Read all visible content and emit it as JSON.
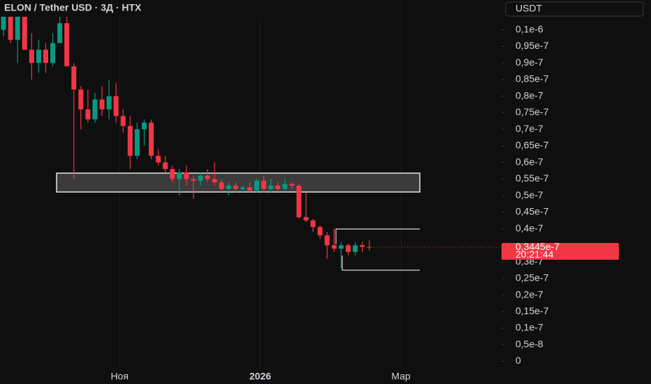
{
  "chart_data": {
    "type": "candlestick",
    "title": "ELON / Tether USD · 3Д · HTX",
    "currency_button": "USDT",
    "up_color": "#089981",
    "down_color": "#f23645",
    "open": [
      1e-07,
      1.04e-07,
      9.7e-08,
      1.05e-07,
      9.4e-08,
      9e-08,
      9.4e-08,
      9e-08,
      9.6e-08,
      1.02e-07,
      8.9e-08,
      8.2e-08,
      7.6e-08,
      7.3e-08,
      7.9e-08,
      7.6e-08,
      8e-08,
      7.4e-08,
      7.1e-08,
      6.2e-08,
      7e-08,
      7.2e-08,
      6.2e-08,
      6e-08,
      5.8e-08,
      5.5e-08,
      5.7e-08,
      5.5e-08,
      5.45e-08,
      5.6e-08,
      5.5e-08,
      5.4e-08,
      5.2e-08,
      5.3e-08,
      5.2e-08,
      5.25e-08,
      5.15e-08,
      5.45e-08,
      5.2e-08,
      5.3e-08,
      5.2e-08,
      5.35e-08,
      5.3e-08,
      4.35e-08,
      4.25e-08,
      4.05e-08,
      3.8e-08,
      3.5e-08,
      3.4e-08,
      3.5e-08,
      3.3e-08,
      3.5e-08,
      3.45e-08
    ],
    "high": [
      1.08e-07,
      1.06e-07,
      1.06e-07,
      1.08e-07,
      9.9e-08,
      9.7e-08,
      9.6e-08,
      9.9e-08,
      1.08e-07,
      1.08e-07,
      9e-08,
      8.3e-08,
      8.2e-08,
      8.1e-08,
      8.3e-08,
      8.5e-08,
      8.4e-08,
      7.6e-08,
      7.4e-08,
      7.2e-08,
      7.3e-08,
      7.3e-08,
      6.4e-08,
      6.2e-08,
      5.9e-08,
      5.8e-08,
      5.9e-08,
      5.6e-08,
      5.7e-08,
      5.8e-08,
      6e-08,
      5.5e-08,
      5.4e-08,
      5.4e-08,
      5.3e-08,
      5.4e-08,
      5.5e-08,
      5.6e-08,
      5.5e-08,
      5.4e-08,
      5.5e-08,
      5.4e-08,
      5.35e-08,
      5.1e-08,
      4.3e-08,
      4.1e-08,
      3.9e-08,
      4e-08,
      3.6e-08,
      3.55e-08,
      3.6e-08,
      3.6e-08,
      3.65e-08
    ],
    "low": [
      9.8e-08,
      9.6e-08,
      9e-08,
      9.4e-08,
      8.5e-08,
      8.7e-08,
      8.7e-08,
      8.9e-08,
      9.6e-08,
      8.9e-08,
      5.5e-08,
      7e-08,
      7.2e-08,
      7.2e-08,
      7.4e-08,
      7.3e-08,
      7.2e-08,
      6.9e-08,
      5.8e-08,
      6.1e-08,
      6.5e-08,
      6.1e-08,
      5.9e-08,
      5.7e-08,
      5.4e-08,
      5e-08,
      5.3e-08,
      4.9e-08,
      5.3e-08,
      5.4e-08,
      5.3e-08,
      5.1e-08,
      5e-08,
      5.1e-08,
      5.1e-08,
      5.1e-08,
      5.1e-08,
      5.1e-08,
      5.1e-08,
      5.15e-08,
      5.1e-08,
      5.2e-08,
      4.3e-08,
      4.2e-08,
      3.9e-08,
      3.7e-08,
      3.1e-08,
      3.3e-08,
      2.8e-08,
      3.2e-08,
      3.2e-08,
      3.3e-08,
      3.35e-08
    ],
    "close": [
      1.04e-07,
      9.7e-08,
      1.05e-07,
      9.4e-08,
      9e-08,
      9.4e-08,
      9e-08,
      9.6e-08,
      1.02e-07,
      8.9e-08,
      8.2e-08,
      7.6e-08,
      7.3e-08,
      7.9e-08,
      7.6e-08,
      8e-08,
      7.4e-08,
      7.1e-08,
      6.2e-08,
      7e-08,
      7.2e-08,
      6.2e-08,
      6e-08,
      5.8e-08,
      5.5e-08,
      5.7e-08,
      5.5e-08,
      5.45e-08,
      5.6e-08,
      5.5e-08,
      5.4e-08,
      5.2e-08,
      5.3e-08,
      5.2e-08,
      5.25e-08,
      5.15e-08,
      5.45e-08,
      5.2e-08,
      5.3e-08,
      5.2e-08,
      5.35e-08,
      5.3e-08,
      4.35e-08,
      4.25e-08,
      4.05e-08,
      3.8e-08,
      3.5e-08,
      3.4e-08,
      3.5e-08,
      3.3e-08,
      3.5e-08,
      3.45e-08,
      3.445e-08
    ],
    "xlim": [
      -0.5,
      70.8
    ],
    "xticks": [
      {
        "value": 16.5,
        "label": "Ноя"
      },
      {
        "value": 36.5,
        "label": "2026"
      },
      {
        "value": 56.5,
        "label": "Мар"
      }
    ],
    "ylim": [
      -2e-09,
      1.09e-07
    ],
    "yticks": [
      {
        "value": 1e-07,
        "label": "0,1e-6"
      },
      {
        "value": 9.5e-08,
        "label": "0,95e-7"
      },
      {
        "value": 9e-08,
        "label": "0,9e-7"
      },
      {
        "value": 8.5e-08,
        "label": "0,85e-7"
      },
      {
        "value": 8e-08,
        "label": "0,8e-7"
      },
      {
        "value": 7.5e-08,
        "label": "0,75e-7"
      },
      {
        "value": 7e-08,
        "label": "0,7e-7"
      },
      {
        "value": 6.5e-08,
        "label": "0,65e-7"
      },
      {
        "value": 6e-08,
        "label": "0,6e-7"
      },
      {
        "value": 5.5e-08,
        "label": "0,55e-7"
      },
      {
        "value": 5e-08,
        "label": "0,5e-7"
      },
      {
        "value": 4.5e-08,
        "label": "0,45e-7"
      },
      {
        "value": 4e-08,
        "label": "0,4e-7"
      },
      {
        "value": 3e-08,
        "label": "0,3e-7"
      },
      {
        "value": 2.5e-08,
        "label": "0,25e-7"
      },
      {
        "value": 2e-08,
        "label": "0,2e-7"
      },
      {
        "value": 1.5e-08,
        "label": "0,15e-7"
      },
      {
        "value": 1e-08,
        "label": "0,1e-7"
      },
      {
        "value": 5e-09,
        "label": "0,5e-8"
      },
      0
    ],
    "last_price": {
      "value": 3.445e-08,
      "label": "0,3445e-7"
    },
    "countdown": "20:21:44"
  }
}
